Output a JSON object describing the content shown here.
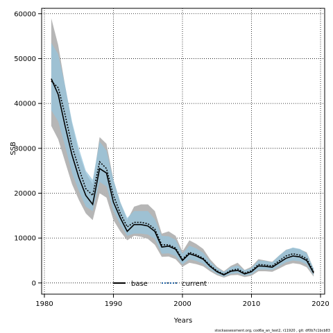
{
  "chart_data": {
    "type": "line",
    "xlabel": "Years",
    "ylabel": "SSB",
    "xlim": [
      1979.6,
      2020.6
    ],
    "ylim": [
      -2500,
      61200
    ],
    "x_ticks": [
      1980,
      1990,
      2000,
      2010,
      2020
    ],
    "y_ticks": [
      0,
      10000,
      20000,
      30000,
      40000,
      50000,
      60000
    ],
    "grid": true,
    "legend_position": "bottom-center",
    "years": [
      1981,
      1982,
      1983,
      1984,
      1985,
      1986,
      1987,
      1988,
      1989,
      1990,
      1991,
      1992,
      1993,
      1994,
      1995,
      1996,
      1997,
      1998,
      1999,
      2000,
      2001,
      2002,
      2003,
      2004,
      2005,
      2006,
      2007,
      2008,
      2009,
      2010,
      2011,
      2012,
      2013,
      2014,
      2015,
      2016,
      2017,
      2018,
      2019
    ],
    "series": [
      {
        "name": "base",
        "color": "#000000",
        "style": "solid",
        "values": [
          45500,
          42000,
          35000,
          28500,
          23500,
          19500,
          17500,
          25500,
          24500,
          18000,
          14500,
          11500,
          13000,
          13000,
          12700,
          11500,
          8000,
          8200,
          7500,
          5000,
          6500,
          6000,
          5300,
          3700,
          2500,
          1800,
          2600,
          2800,
          2000,
          2500,
          3800,
          3700,
          3500,
          4500,
          5500,
          6000,
          5800,
          5000,
          2200
        ],
        "lower": [
          35000,
          32000,
          27000,
          22000,
          18500,
          15500,
          14000,
          20000,
          19000,
          14000,
          11500,
          9500,
          10500,
          10300,
          9800,
          8500,
          5800,
          5900,
          5300,
          3600,
          4500,
          4200,
          3700,
          2600,
          1700,
          1200,
          1700,
          1800,
          1300,
          1600,
          2600,
          2600,
          2500,
          3200,
          4000,
          4400,
          4200,
          3500,
          1400
        ],
        "upper": [
          59000,
          53000,
          44000,
          35500,
          29000,
          24500,
          22000,
          32500,
          31000,
          23000,
          18000,
          14000,
          17000,
          17500,
          17500,
          16000,
          11000,
          11500,
          10500,
          7000,
          9500,
          8700,
          7600,
          5300,
          3600,
          2600,
          3800,
          4500,
          2900,
          3600,
          5300,
          5000,
          4700,
          6100,
          7400,
          7800,
          7500,
          6800,
          3200
        ]
      },
      {
        "name": "current",
        "color": "#1f5fa0",
        "style": "dotted",
        "values": [
          45000,
          43500,
          37500,
          30500,
          25500,
          21000,
          19500,
          27000,
          25500,
          19500,
          15500,
          12500,
          13500,
          13500,
          13200,
          12000,
          8500,
          8500,
          7800,
          5300,
          6800,
          6300,
          5500,
          3900,
          2700,
          1900,
          2800,
          3100,
          2200,
          2700,
          4100,
          4000,
          3800,
          4900,
          6000,
          6500,
          6200,
          5400,
          2500
        ],
        "lower": [
          38500,
          36000,
          30500,
          24500,
          20500,
          17000,
          16000,
          22500,
          21500,
          16000,
          13000,
          10500,
          11000,
          11000,
          10800,
          9800,
          6500,
          6600,
          6000,
          4100,
          5300,
          4900,
          4300,
          3000,
          2000,
          1400,
          2000,
          2200,
          1600,
          1900,
          3000,
          3000,
          2900,
          3700,
          4600,
          5000,
          4800,
          4100,
          1700
        ],
        "upper": [
          53500,
          51000,
          44000,
          36000,
          30000,
          25000,
          23000,
          31500,
          29500,
          23000,
          18000,
          14500,
          16000,
          16000,
          16000,
          14200,
          10500,
          10400,
          9600,
          6500,
          8300,
          7700,
          6700,
          4800,
          3300,
          2400,
          3500,
          3900,
          2800,
          3300,
          5000,
          4900,
          4600,
          6100,
          7300,
          7900,
          7600,
          6600,
          3200
        ]
      }
    ]
  },
  "footnote": "stockassessment.org, cod6a_an_test2, r11920 , git: df0b7c1bcb83"
}
